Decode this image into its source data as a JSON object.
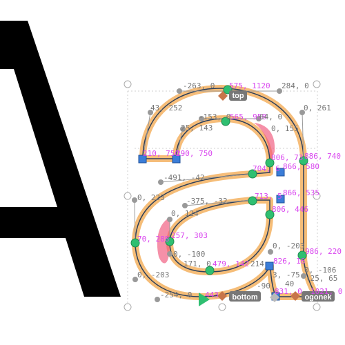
{
  "editor": {
    "glyph_background": "A",
    "glyph_foreground": "a",
    "anchors": [
      "top",
      "bottom",
      "ogonek"
    ],
    "handle_labels": [
      "-263, 0",
      "575, 1120",
      "284, 0",
      "43, 252",
      "0, 261",
      "-153, 0",
      "565, 958",
      "64, 0",
      "25, 143",
      "0, 155",
      "210, 750",
      "290, 750",
      "806, 73",
      "886, 740",
      "704, 6",
      "866, 580",
      "-491, -42",
      "0, 223",
      "713, 5",
      "866, 535",
      "-375, -32",
      "806, 446",
      "0, 124",
      "70, 288",
      "257, 303",
      "0, -203",
      "0, -100",
      "986, 220",
      "171, 0",
      "479, 142",
      "214",
      "826, 16",
      "0, -106",
      "0, -203",
      "3, -75",
      "-25, 65",
      "-254, 0",
      "443",
      "-90",
      "40",
      "831, 0",
      "1021, 0"
    ]
  },
  "colors": {
    "background": "#ffffff",
    "glyph_black": "#000000",
    "outline": "#2b3f5c",
    "highlight": "#f5b66a",
    "curvature_pink": "#f0557a",
    "node_on_curve": "#2fbf71",
    "node_corner": "#3b7dd8",
    "anchor": "#c7754a",
    "coord_label": "#d946ef",
    "offcurve_label": "#777777",
    "anchor_badge_bg": "#777777"
  }
}
